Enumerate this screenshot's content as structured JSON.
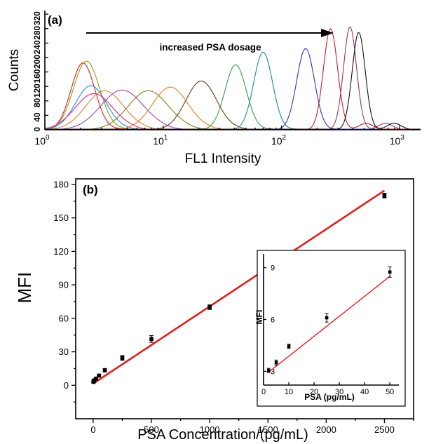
{
  "chart_data": [
    {
      "panel": "(a)",
      "type": "line",
      "annotation": "increased PSA dosage",
      "xlabel": "FL1 Intensity",
      "ylabel": "Counts",
      "xscale": "log",
      "xlim": [
        1,
        1500
      ],
      "ylim": [
        0,
        330
      ],
      "xticks": [
        1,
        10,
        100,
        1000
      ],
      "xtick_labels": [
        {
          "base": "10",
          "exp": "0"
        },
        {
          "base": "10",
          "exp": "1"
        },
        {
          "base": "10",
          "exp": "2"
        },
        {
          "base": "10",
          "exp": "3"
        }
      ],
      "yticks": [
        0,
        40,
        80,
        120,
        160,
        200,
        240,
        280,
        320
      ],
      "series": [
        {
          "color": "#e01e1e",
          "peak": 2.1,
          "height": 185,
          "width": 0.1
        },
        {
          "color": "#8ca020",
          "peak": 2.25,
          "height": 190,
          "width": 0.11
        },
        {
          "color": "#1e90d0",
          "peak": 2.45,
          "height": 122,
          "width": 0.13
        },
        {
          "color": "#e0208c",
          "peak": 2.6,
          "height": 100,
          "width": 0.16
        },
        {
          "color": "#e08030",
          "peak": 3.2,
          "height": 108,
          "width": 0.16
        },
        {
          "color": "#a040b0",
          "peak": 4.5,
          "height": 110,
          "width": 0.18
        },
        {
          "color": "#808020",
          "peak": 7.5,
          "height": 108,
          "width": 0.17
        },
        {
          "color": "#f07c10",
          "peak": 11.5,
          "height": 118,
          "width": 0.15
        },
        {
          "color": "#6b3a10",
          "peak": 21,
          "height": 135,
          "width": 0.13
        },
        {
          "color": "#30a040",
          "peak": 41,
          "height": 180,
          "width": 0.09
        },
        {
          "color": "#109090",
          "peak": 70,
          "height": 215,
          "width": 0.08
        },
        {
          "color": "#3030c0",
          "peak": 160,
          "height": 225,
          "width": 0.075
        },
        {
          "color": "#c02020",
          "peak": 260,
          "height": 280,
          "width": 0.06
        },
        {
          "color": "#a03060",
          "peak": 380,
          "height": 285,
          "width": 0.055
        },
        {
          "color": "#111111",
          "peak": 450,
          "height": 270,
          "width": 0.055
        }
      ]
    },
    {
      "panel": "(b)",
      "type": "scatter",
      "xlabel": "PSA Concentration/(pg/mL)",
      "ylabel": "MFI",
      "xlim": [
        -150,
        2750
      ],
      "ylim": [
        -30,
        185
      ],
      "xticks": [
        0,
        500,
        1000,
        1500,
        2000,
        2500
      ],
      "yticks": [
        0,
        30,
        60,
        90,
        120,
        150,
        180
      ],
      "points": [
        {
          "x": 2,
          "y": 3.1,
          "err": 0.8
        },
        {
          "x": 5,
          "y": 3.5,
          "err": 0.8
        },
        {
          "x": 10,
          "y": 4.5,
          "err": 0.8
        },
        {
          "x": 25,
          "y": 6.0,
          "err": 0.8
        },
        {
          "x": 50,
          "y": 8.7,
          "err": 1.0
        },
        {
          "x": 100,
          "y": 13.5,
          "err": 1.5
        },
        {
          "x": 250,
          "y": 24.5,
          "err": 2.0
        },
        {
          "x": 500,
          "y": 41.5,
          "err": 3.0
        },
        {
          "x": 1000,
          "y": 70,
          "err": 2.0
        },
        {
          "x": 2500,
          "y": 170,
          "err": 2.0
        }
      ],
      "fit": {
        "x": [
          0,
          2500
        ],
        "y": [
          1.5,
          174.5
        ],
        "color": "#e01e1e"
      }
    },
    {
      "panel": "inset",
      "type": "scatter",
      "xlabel": "PSA (pg/mL)",
      "ylabel": "MFI",
      "xlim": [
        0,
        53
      ],
      "ylim": [
        2.2,
        9.8
      ],
      "xticks": [
        0,
        10,
        20,
        30,
        40,
        50
      ],
      "yticks": [
        3,
        6,
        9
      ],
      "points": [
        {
          "x": 2,
          "y": 3.05,
          "err": 0.12
        },
        {
          "x": 5,
          "y": 3.5,
          "err": 0.15
        },
        {
          "x": 10,
          "y": 4.45,
          "err": 0.12
        },
        {
          "x": 25,
          "y": 6.1,
          "err": 0.25
        },
        {
          "x": 50,
          "y": 8.75,
          "err": 0.3
        }
      ],
      "fit": {
        "x": [
          2,
          50
        ],
        "y": [
          2.95,
          8.5
        ],
        "color": "#e01e1e"
      }
    }
  ]
}
